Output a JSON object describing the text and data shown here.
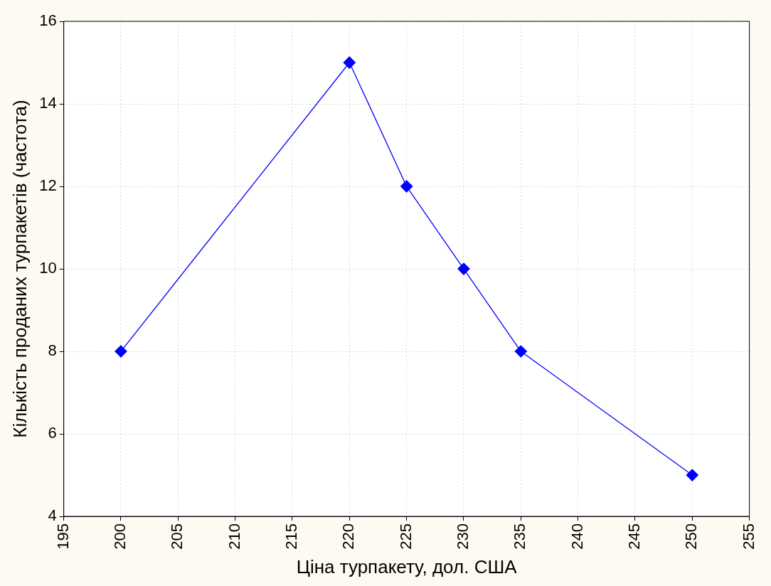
{
  "chart_data": {
    "type": "line",
    "xlabel": "Ціна турпакету, дол. США",
    "ylabel": "Кількість проданих турпакетів (частота)",
    "x": [
      200,
      220,
      225,
      230,
      235,
      250
    ],
    "series": [
      {
        "color": "#0000ff",
        "values": [
          8,
          15,
          12,
          10,
          8,
          5
        ]
      }
    ],
    "xlim": [
      195,
      255
    ],
    "xticks": [
      195,
      200,
      205,
      210,
      215,
      220,
      225,
      230,
      235,
      240,
      245,
      250,
      255
    ],
    "ylim": [
      4,
      16
    ],
    "yticks": [
      4,
      6,
      8,
      10,
      12,
      14,
      16
    ],
    "grid": true,
    "marker": "diamond",
    "line_style": "solid"
  }
}
